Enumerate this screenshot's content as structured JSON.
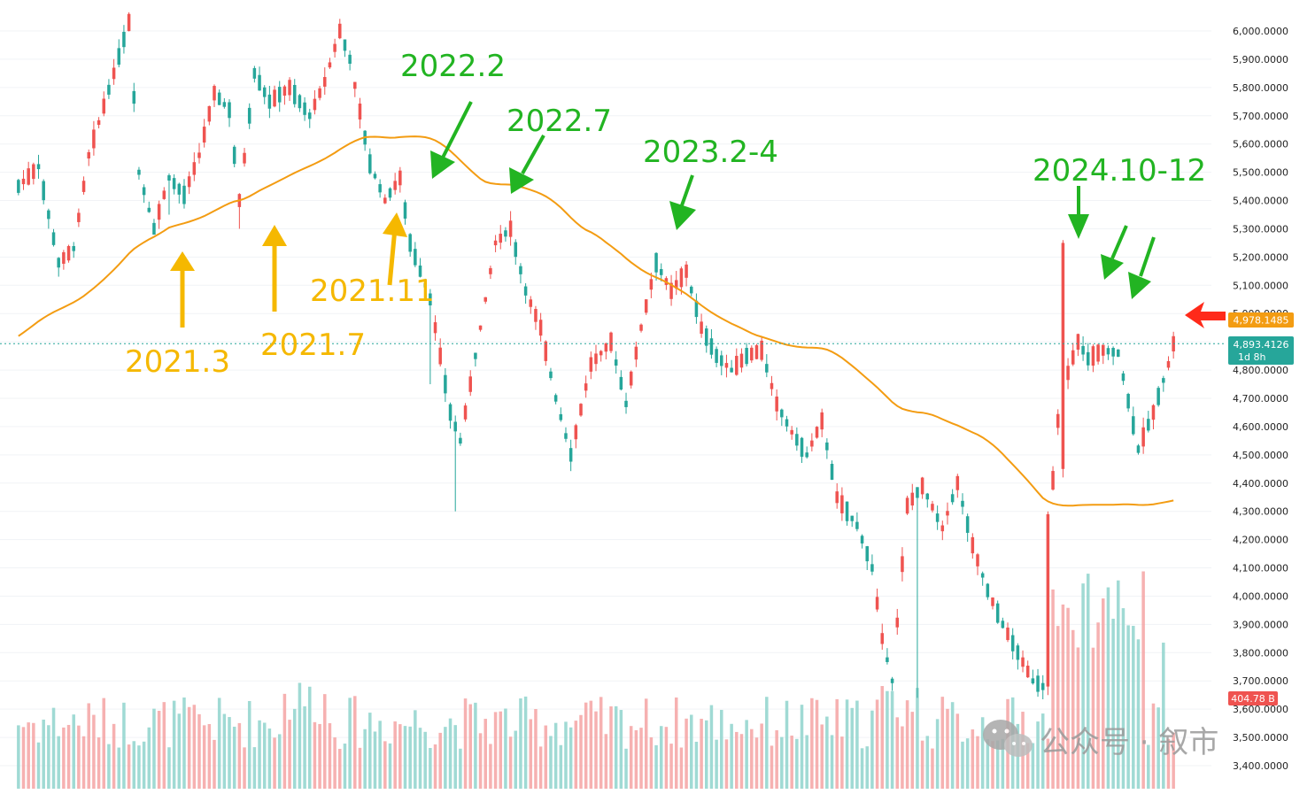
{
  "chart_data": {
    "type": "candlestick",
    "title": "",
    "xlabel": "",
    "ylabel": "",
    "grid": true,
    "y_axis_position": "right",
    "ylim": [
      3350,
      6080
    ],
    "y_ticks": [
      "6,000.0000",
      "5,900.0000",
      "5,800.0000",
      "5,700.0000",
      "5,600.0000",
      "5,500.0000",
      "5,400.0000",
      "5,300.0000",
      "5,200.0000",
      "5,100.0000",
      "5,000.0000",
      "4,900.0000",
      "4,800.0000",
      "4,700.0000",
      "4,600.0000",
      "4,500.0000",
      "4,400.0000",
      "4,300.0000",
      "4,200.0000",
      "4,100.0000",
      "4,000.0000",
      "3,900.0000",
      "3,800.0000",
      "3,700.0000",
      "3,600.0000",
      "3,500.0000",
      "3,400.0000"
    ],
    "y_tick_values": [
      6000,
      5900,
      5800,
      5700,
      5600,
      5500,
      5400,
      5300,
      5200,
      5100,
      5000,
      4900,
      4800,
      4700,
      4600,
      4500,
      4400,
      4300,
      4200,
      4100,
      4000,
      3900,
      3800,
      3700,
      3600,
      3500,
      3400
    ],
    "price_path_keypoints": [
      [
        0,
        5450
      ],
      [
        4,
        5520
      ],
      [
        8,
        5180
      ],
      [
        11,
        5230
      ],
      [
        14,
        5560
      ],
      [
        19,
        5850
      ],
      [
        22,
        6030
      ],
      [
        24,
        5500
      ],
      [
        27,
        5300
      ],
      [
        30,
        5480
      ],
      [
        33,
        5420
      ],
      [
        36,
        5560
      ],
      [
        39,
        5780
      ],
      [
        42,
        5720
      ],
      [
        44,
        5400
      ],
      [
        47,
        5850
      ],
      [
        50,
        5750
      ],
      [
        54,
        5800
      ],
      [
        58,
        5700
      ],
      [
        61,
        5820
      ],
      [
        64,
        6000
      ],
      [
        66,
        5900
      ],
      [
        70,
        5530
      ],
      [
        73,
        5400
      ],
      [
        76,
        5480
      ],
      [
        78,
        5250
      ],
      [
        82,
        5050
      ],
      [
        86,
        4650
      ],
      [
        88,
        4550
      ],
      [
        91,
        4850
      ],
      [
        95,
        5250
      ],
      [
        98,
        5300
      ],
      [
        101,
        5080
      ],
      [
        104,
        4950
      ],
      [
        107,
        4700
      ],
      [
        110,
        4500
      ],
      [
        114,
        4820
      ],
      [
        118,
        4900
      ],
      [
        121,
        4680
      ],
      [
        124,
        4950
      ],
      [
        127,
        5180
      ],
      [
        130,
        5080
      ],
      [
        133,
        5150
      ],
      [
        136,
        4950
      ],
      [
        139,
        4850
      ],
      [
        142,
        4800
      ],
      [
        145,
        4850
      ],
      [
        148,
        4870
      ],
      [
        151,
        4680
      ],
      [
        154,
        4580
      ],
      [
        157,
        4500
      ],
      [
        160,
        4620
      ],
      [
        163,
        4350
      ],
      [
        167,
        4250
      ],
      [
        170,
        4100
      ],
      [
        172,
        3850
      ],
      [
        174,
        3700
      ],
      [
        177,
        4320
      ],
      [
        180,
        4390
      ],
      [
        184,
        4240
      ],
      [
        187,
        4400
      ],
      [
        190,
        4180
      ],
      [
        193,
        4020
      ],
      [
        196,
        3900
      ],
      [
        199,
        3800
      ],
      [
        202,
        3700
      ],
      [
        204,
        3680
      ],
      [
        205,
        4200
      ],
      [
        207,
        4620
      ],
      [
        209,
        4790
      ],
      [
        211,
        4900
      ],
      [
        213,
        4840
      ],
      [
        216,
        4870
      ],
      [
        219,
        4860
      ],
      [
        223,
        4520
      ],
      [
        226,
        4650
      ],
      [
        229,
        4820
      ],
      [
        230,
        4893
      ]
    ],
    "volume_unit": "B",
    "volume_latest": 404.78,
    "moving_average": {
      "latest": 4978.1485,
      "label": "4,978.1485",
      "color": "#f39c12"
    },
    "last_price": {
      "value": 4893.4126,
      "label": "4,893.4126",
      "sublabel": "1d 8h",
      "color": "#26a69a"
    },
    "volume_tag": {
      "label": "404.78 B",
      "color": "#ef5350"
    },
    "colors": {
      "up": "#ef5350",
      "down": "#26a69a",
      "vol_up": "#f4a3a3",
      "vol_down": "#8fd3cc"
    },
    "annotations": [
      {
        "text": "2021.3",
        "color": "#f5b800",
        "kind": "up-arrow"
      },
      {
        "text": "2021.7",
        "color": "#f5b800",
        "kind": "up-arrow"
      },
      {
        "text": "2021.11",
        "color": "#f5b800",
        "kind": "up-arrow"
      },
      {
        "text": "2022.2",
        "color": "#22b422",
        "kind": "down-arrow"
      },
      {
        "text": "2022.7",
        "color": "#22b422",
        "kind": "down-arrow"
      },
      {
        "text": "2023.2-4",
        "color": "#22b422",
        "kind": "down-arrow"
      },
      {
        "text": "2024.10-12",
        "color": "#22b422",
        "kind": "down-arrow"
      }
    ],
    "pointer_color": "#ff2a1a"
  },
  "watermark": {
    "text": "公众号 · 叙市",
    "icon": "wechat-icon"
  }
}
